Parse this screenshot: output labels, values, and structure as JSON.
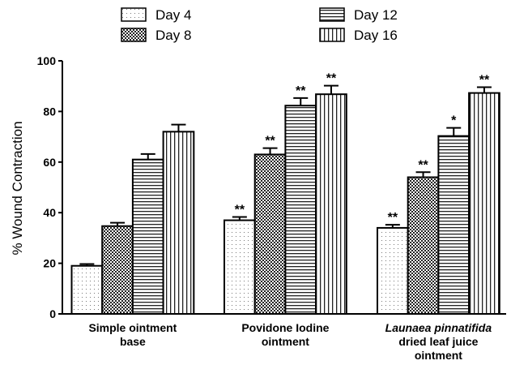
{
  "chart_data": {
    "type": "bar",
    "title": "",
    "xlabel": "",
    "ylabel": "% Wound Contraction",
    "ylim": [
      0,
      100
    ],
    "yticks": [
      0,
      20,
      40,
      60,
      80,
      100
    ],
    "grid": false,
    "legend_placement": "top",
    "categories": [
      {
        "lines": [
          "Simple ointment",
          "base"
        ],
        "italic_first": false
      },
      {
        "lines": [
          "Povidone Iodine",
          "ointment"
        ],
        "italic_first": false
      },
      {
        "lines": [
          "Launaea pinnatifida",
          "dried leaf juice",
          "ointment"
        ],
        "italic_first": true
      }
    ],
    "series": [
      {
        "name": "Day 4",
        "pattern": "dots",
        "values": [
          19,
          37,
          34
        ],
        "errors": [
          0.7,
          1.3,
          1.2
        ],
        "significance": [
          "",
          "**",
          "**"
        ]
      },
      {
        "name": "Day 8",
        "pattern": "checker",
        "values": [
          34.7,
          63,
          54
        ],
        "errors": [
          1.3,
          2.5,
          2.0
        ],
        "significance": [
          "",
          "**",
          "**"
        ]
      },
      {
        "name": "Day 12",
        "pattern": "horizontal",
        "values": [
          61,
          82.3,
          70.3
        ],
        "errors": [
          2.2,
          3.0,
          3.2
        ],
        "significance": [
          "",
          "**",
          "*"
        ]
      },
      {
        "name": "Day 16",
        "pattern": "vertical",
        "values": [
          72,
          86.8,
          87.3
        ],
        "errors": [
          2.8,
          3.4,
          2.3
        ],
        "significance": [
          "",
          "**",
          "**"
        ]
      }
    ]
  }
}
